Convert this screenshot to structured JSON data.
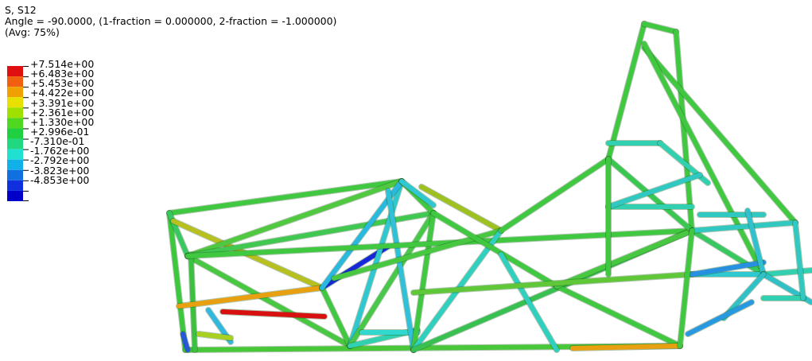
{
  "legend": {
    "line1": "S, S12",
    "line2": "Angle = -90.0000, (1-fraction = 0.000000, 2-fraction = -1.000000)",
    "line3": "(Avg: 75%)",
    "levels": [
      "+7.514e+00",
      "+6.483e+00",
      "+5.453e+00",
      "+4.422e+00",
      "+3.391e+00",
      "+2.361e+00",
      "+1.330e+00",
      "+2.996e-01",
      "-7.310e-01",
      "-1.762e+00",
      "-2.792e+00",
      "-3.823e+00",
      "-4.853e+00"
    ],
    "colors": [
      "#e01010",
      "#f06010",
      "#f0a000",
      "#e8e000",
      "#a0e000",
      "#50d820",
      "#20d040",
      "#20d880",
      "#20e0d0",
      "#10b0e8",
      "#1070e0",
      "#1030e0",
      "#0000c8"
    ]
  },
  "members": [
    {
      "c": "#3cc83c",
      "p": [
        [
          213,
          268
        ],
        [
          233,
          440
        ]
      ]
    },
    {
      "c": "#40c840",
      "p": [
        [
          213,
          268
        ],
        [
          505,
          228
        ]
      ]
    },
    {
      "c": "#38c860",
      "p": [
        [
          213,
          268
        ],
        [
          236,
          322
        ]
      ]
    },
    {
      "c": "#b8c020",
      "p": [
        [
          218,
          278
        ],
        [
          405,
          362
        ]
      ]
    },
    {
      "c": "#50c840",
      "p": [
        [
          236,
          322
        ],
        [
          505,
          228
        ]
      ]
    },
    {
      "c": "#40c850",
      "p": [
        [
          236,
          322
        ],
        [
          545,
          268
        ]
      ]
    },
    {
      "c": "#48c840",
      "p": [
        [
          236,
          322
        ],
        [
          440,
          435
        ]
      ]
    },
    {
      "c": "#48c838",
      "p": [
        [
          233,
          440
        ],
        [
          855,
          435
        ]
      ]
    },
    {
      "c": "#3cc040",
      "p": [
        [
          240,
          320
        ],
        [
          245,
          440
        ]
      ]
    },
    {
      "c": "#e8a010",
      "p": [
        [
          225,
          385
        ],
        [
          405,
          362
        ]
      ]
    },
    {
      "c": "#d81010",
      "p": [
        [
          280,
          392
        ],
        [
          408,
          398
        ]
      ]
    },
    {
      "c": "#30b8e0",
      "p": [
        [
          262,
          390
        ],
        [
          290,
          430
        ]
      ]
    },
    {
      "c": "#1828d8",
      "p": [
        [
          405,
          362
        ],
        [
          488,
          310
        ]
      ]
    },
    {
      "c": "#a8d020",
      "p": [
        [
          250,
          420
        ],
        [
          290,
          425
        ]
      ]
    },
    {
      "c": "#2858d8",
      "p": [
        [
          230,
          420
        ],
        [
          236,
          440
        ]
      ]
    },
    {
      "c": "#40c840",
      "p": [
        [
          405,
          362
        ],
        [
          440,
          435
        ]
      ]
    },
    {
      "c": "#30c8d0",
      "p": [
        [
          440,
          435
        ],
        [
          505,
          228
        ]
      ]
    },
    {
      "c": "#48c848",
      "p": [
        [
          440,
          435
        ],
        [
          545,
          268
        ]
      ]
    },
    {
      "c": "#30d0b0",
      "p": [
        [
          440,
          435
        ],
        [
          525,
          415
        ]
      ]
    },
    {
      "c": "#30d8d0",
      "p": [
        [
          455,
          418
        ],
        [
          525,
          418
        ]
      ]
    },
    {
      "c": "#28b8e0",
      "p": [
        [
          405,
          362
        ],
        [
          505,
          228
        ]
      ]
    },
    {
      "c": "#40c840",
      "p": [
        [
          505,
          228
        ],
        [
          545,
          268
        ]
      ]
    },
    {
      "c": "#30c0d8",
      "p": [
        [
          488,
          240
        ],
        [
          520,
          440
        ]
      ]
    },
    {
      "c": "#40c840",
      "p": [
        [
          545,
          268
        ],
        [
          520,
          440
        ]
      ]
    },
    {
      "c": "#a0c020",
      "p": [
        [
          530,
          235
        ],
        [
          630,
          290
        ]
      ]
    },
    {
      "c": "#40c840",
      "p": [
        [
          236,
          322
        ],
        [
          870,
          290
        ]
      ]
    },
    {
      "c": "#48c840",
      "p": [
        [
          420,
          350
        ],
        [
          630,
          290
        ]
      ]
    },
    {
      "c": "#30d0c0",
      "p": [
        [
          520,
          440
        ],
        [
          630,
          290
        ]
      ]
    },
    {
      "c": "#40c840",
      "p": [
        [
          545,
          268
        ],
        [
          700,
          360
        ]
      ]
    },
    {
      "c": "#38c050",
      "p": [
        [
          520,
          440
        ],
        [
          870,
          290
        ]
      ]
    },
    {
      "c": "#30d0c0",
      "p": [
        [
          630,
          320
        ],
        [
          700,
          440
        ]
      ]
    },
    {
      "c": "#40c840",
      "p": [
        [
          630,
          290
        ],
        [
          765,
          200
        ]
      ]
    },
    {
      "c": "#40c840",
      "p": [
        [
          700,
          360
        ],
        [
          855,
          435
        ]
      ]
    },
    {
      "c": "#48c840",
      "p": [
        [
          700,
          360
        ],
        [
          870,
          290
        ]
      ]
    },
    {
      "c": "#e8a010",
      "p": [
        [
          720,
          438
        ],
        [
          855,
          435
        ]
      ]
    },
    {
      "c": "#60c838",
      "p": [
        [
          520,
          368
        ],
        [
          870,
          345
        ]
      ]
    },
    {
      "c": "#40c840",
      "p": [
        [
          765,
          200
        ],
        [
          810,
          30
        ]
      ]
    },
    {
      "c": "#40c840",
      "p": [
        [
          810,
          30
        ],
        [
          850,
          40
        ]
      ]
    },
    {
      "c": "#40c840",
      "p": [
        [
          850,
          40
        ],
        [
          870,
          290
        ]
      ]
    },
    {
      "c": "#40c840",
      "p": [
        [
          810,
          60
        ],
        [
          1000,
          280
        ]
      ]
    },
    {
      "c": "#40c840",
      "p": [
        [
          810,
          55
        ],
        [
          960,
          345
        ]
      ]
    },
    {
      "c": "#38c850",
      "p": [
        [
          765,
          200
        ],
        [
          870,
          290
        ]
      ]
    },
    {
      "c": "#30d0b0",
      "p": [
        [
          765,
          180
        ],
        [
          830,
          180
        ]
      ]
    },
    {
      "c": "#30d0b0",
      "p": [
        [
          830,
          180
        ],
        [
          890,
          230
        ]
      ]
    },
    {
      "c": "#30d0b0",
      "p": [
        [
          765,
          260
        ],
        [
          870,
          260
        ]
      ]
    },
    {
      "c": "#30c8c0",
      "p": [
        [
          765,
          260
        ],
        [
          880,
          220
        ]
      ]
    },
    {
      "c": "#40c840",
      "p": [
        [
          765,
          200
        ],
        [
          765,
          345
        ]
      ]
    },
    {
      "c": "#38c860",
      "p": [
        [
          870,
          290
        ],
        [
          960,
          345
        ]
      ]
    },
    {
      "c": "#30c8c0",
      "p": [
        [
          870,
          290
        ],
        [
          1000,
          280
        ]
      ]
    },
    {
      "c": "#30c8d0",
      "p": [
        [
          870,
          345
        ],
        [
          960,
          345
        ]
      ]
    },
    {
      "c": "#2890e0",
      "p": [
        [
          870,
          345
        ],
        [
          960,
          330
        ]
      ]
    },
    {
      "c": "#30c8c0",
      "p": [
        [
          880,
          270
        ],
        [
          960,
          270
        ]
      ]
    },
    {
      "c": "#30c0d0",
      "p": [
        [
          940,
          265
        ],
        [
          960,
          345
        ]
      ]
    },
    {
      "c": "#30d0b0",
      "p": [
        [
          960,
          345
        ],
        [
          1020,
          340
        ]
      ]
    },
    {
      "c": "#30c0c8",
      "p": [
        [
          960,
          345
        ],
        [
          1020,
          380
        ]
      ]
    },
    {
      "c": "#30c0c8",
      "p": [
        [
          910,
          400
        ],
        [
          960,
          345
        ]
      ]
    },
    {
      "c": "#2898e0",
      "p": [
        [
          865,
          420
        ],
        [
          945,
          380
        ]
      ]
    },
    {
      "c": "#30d0b0",
      "p": [
        [
          960,
          375
        ],
        [
          1010,
          375
        ]
      ]
    },
    {
      "c": "#30c8c0",
      "p": [
        [
          1000,
          280
        ],
        [
          1010,
          375
        ]
      ]
    },
    {
      "c": "#40c840",
      "p": [
        [
          855,
          435
        ],
        [
          870,
          290
        ]
      ]
    },
    {
      "c": "#30c8d0",
      "p": [
        [
          505,
          228
        ],
        [
          545,
          258
        ]
      ]
    }
  ]
}
